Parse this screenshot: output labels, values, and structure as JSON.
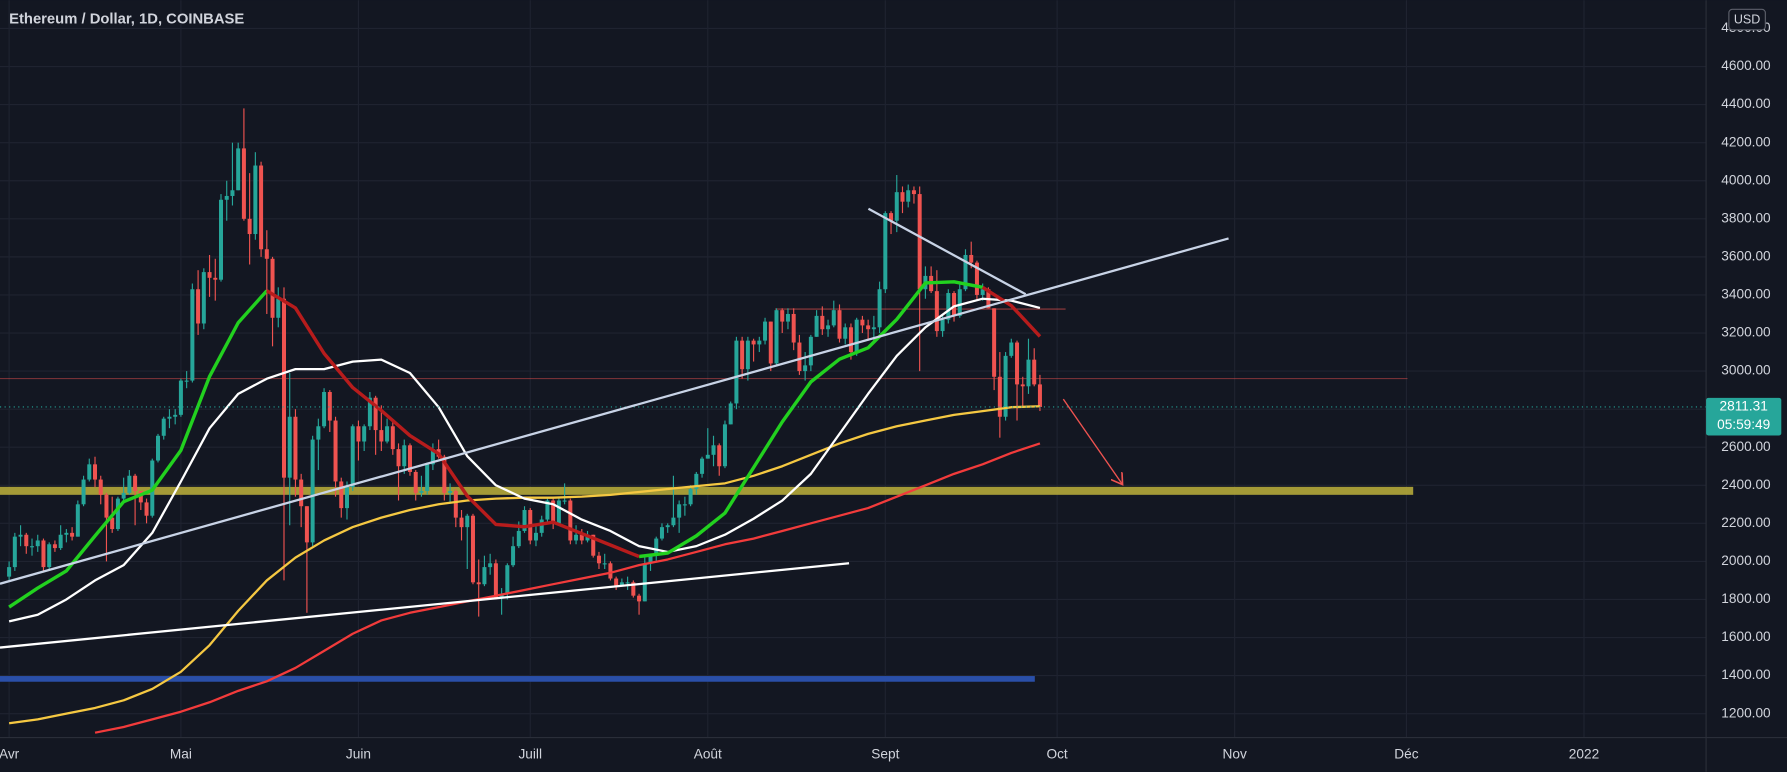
{
  "chart_data": {
    "type": "candlestick",
    "title": "Ethereum / Dollar, 1D, COINBASE",
    "currency": "USD",
    "last_price": 2811.31,
    "countdown": "05:59:49",
    "up_color": "#26a69a",
    "down_color": "#ef5350",
    "grid": true,
    "xlim": [
      -1.59,
      296.32
    ],
    "xticks": [
      {
        "value": 0,
        "label": "Avr"
      },
      {
        "value": 30,
        "label": "Mai"
      },
      {
        "value": 61,
        "label": "Juin"
      },
      {
        "value": 91,
        "label": "Juill"
      },
      {
        "value": 122,
        "label": "Août"
      },
      {
        "value": 153,
        "label": "Sept"
      },
      {
        "value": 183,
        "label": "Oct"
      },
      {
        "value": 214,
        "label": "Nov"
      },
      {
        "value": 244,
        "label": "Déc"
      },
      {
        "value": 275,
        "label": "2022"
      }
    ],
    "ylim": [
      1074.3,
      4948.5
    ],
    "yticks": [
      {
        "value": 1200,
        "label": "1200.00"
      },
      {
        "value": 1400,
        "label": "1400.00"
      },
      {
        "value": 1600,
        "label": "1600.00"
      },
      {
        "value": 1800,
        "label": "1800.00"
      },
      {
        "value": 2000,
        "label": "2000.00"
      },
      {
        "value": 2200,
        "label": "2200.00"
      },
      {
        "value": 2400,
        "label": "2400.00"
      },
      {
        "value": 2600,
        "label": "2600.00"
      },
      {
        "value": 2800,
        "label": "2800.00"
      },
      {
        "value": 3000,
        "label": "3000.00"
      },
      {
        "value": 3200,
        "label": "3200.00"
      },
      {
        "value": 3400,
        "label": "3400.00"
      },
      {
        "value": 3600,
        "label": "3600.00"
      },
      {
        "value": 3800,
        "label": "3800.00"
      },
      {
        "value": 4000,
        "label": "4000.00"
      },
      {
        "value": 4200,
        "label": "4200.00"
      },
      {
        "value": 4400,
        "label": "4400.00"
      },
      {
        "value": 4600,
        "label": "4600.00"
      },
      {
        "value": 4800,
        "label": "4800.00"
      }
    ],
    "x": [
      0,
      1,
      2,
      3,
      4,
      5,
      6,
      7,
      8,
      9,
      10,
      11,
      12,
      13,
      14,
      15,
      16,
      17,
      18,
      19,
      20,
      21,
      22,
      23,
      24,
      25,
      26,
      27,
      28,
      29,
      30,
      31,
      32,
      33,
      34,
      35,
      36,
      37,
      38,
      39,
      40,
      41,
      42,
      43,
      44,
      45,
      46,
      47,
      48,
      49,
      50,
      51,
      52,
      53,
      54,
      55,
      56,
      57,
      58,
      59,
      60,
      61,
      62,
      63,
      64,
      65,
      66,
      67,
      68,
      69,
      70,
      71,
      72,
      73,
      74,
      75,
      76,
      77,
      78,
      79,
      80,
      81,
      82,
      83,
      84,
      85,
      86,
      87,
      88,
      89,
      90,
      91,
      92,
      93,
      94,
      95,
      96,
      97,
      98,
      99,
      100,
      101,
      102,
      103,
      104,
      105,
      106,
      107,
      108,
      109,
      110,
      111,
      112,
      113,
      114,
      115,
      116,
      117,
      118,
      119,
      120,
      121,
      122,
      123,
      124,
      125,
      126,
      127,
      128,
      129,
      130,
      131,
      132,
      133,
      134,
      135,
      136,
      137,
      138,
      139,
      140,
      141,
      142,
      143,
      144,
      145,
      146,
      147,
      148,
      149,
      150,
      151,
      152,
      153,
      154,
      155,
      156,
      157,
      158,
      159,
      160,
      161,
      162,
      163,
      164,
      165,
      166,
      167,
      168,
      169,
      170,
      171,
      172,
      173,
      174,
      175,
      176,
      177,
      178,
      179,
      180
    ],
    "open": [
      1920,
      1970,
      2130,
      2140,
      2080,
      2080,
      2110,
      1970,
      2090,
      2070,
      2140,
      2150,
      2130,
      2300,
      2430,
      2510,
      2430,
      2350,
      2230,
      2170,
      2330,
      2360,
      2450,
      2370,
      2310,
      2240,
      2530,
      2660,
      2750,
      2760,
      2770,
      2950,
      2950,
      3430,
      3250,
      3520,
      3490,
      3480,
      3900,
      3920,
      3950,
      4170,
      3800,
      3720,
      4080,
      3640,
      3590,
      3280,
      3380,
      2440,
      2760,
      2430,
      2290,
      2100,
      2640,
      2710,
      2890,
      2740,
      2420,
      2280,
      2390,
      2710,
      2630,
      2710,
      2860,
      2690,
      2630,
      2710,
      2590,
      2500,
      2610,
      2470,
      2360,
      2370,
      2510,
      2590,
      2550,
      2360,
      2370,
      2230,
      2180,
      2240,
      1890,
      1880,
      1970,
      1990,
      1810,
      1830,
      1980,
      2080,
      2160,
      2270,
      2110,
      2150,
      2220,
      2320,
      2200,
      2320,
      2320,
      2110,
      2140,
      2110,
      2140,
      2030,
      1990,
      1990,
      1910,
      1870,
      1890,
      1890,
      1820,
      1790,
      1990,
      2030,
      2120,
      2180,
      2190,
      2230,
      2300,
      2300,
      2380,
      2460,
      2540,
      2560,
      2610,
      2500,
      2720,
      2830,
      3160,
      3010,
      3160,
      3140,
      3160,
      3260,
      3040,
      3320,
      3260,
      3300,
      3150,
      3000,
      3030,
      3180,
      3290,
      3220,
      3240,
      3320,
      3170,
      3230,
      3100,
      3270,
      3240,
      3220,
      3230,
      3430,
      3830,
      3790,
      3940,
      3890,
      3950,
      3930,
      3430,
      3500,
      3420,
      3210,
      3270,
      3410,
      3290,
      3430,
      3610,
      3570,
      3400,
      3430,
      3330,
      2970,
      2760,
      3080,
      3150,
      2930,
      2920,
      3060,
      2930
    ],
    "high": [
      2000,
      2150,
      2190,
      2150,
      2120,
      2140,
      2120,
      2100,
      2110,
      2190,
      2170,
      2180,
      2320,
      2450,
      2540,
      2550,
      2450,
      2360,
      2340,
      2340,
      2440,
      2480,
      2460,
      2370,
      2330,
      2540,
      2670,
      2760,
      2800,
      2800,
      2960,
      3000,
      3460,
      3530,
      3540,
      3610,
      3590,
      3930,
      4000,
      4200,
      4200,
      4380,
      4040,
      4150,
      4100,
      3740,
      3600,
      3440,
      3440,
      2990,
      2800,
      2460,
      2290,
      2660,
      2750,
      2910,
      2900,
      2760,
      2440,
      2420,
      2720,
      2740,
      2720,
      2890,
      2870,
      2820,
      2750,
      2740,
      2620,
      2640,
      2620,
      2480,
      2450,
      2520,
      2620,
      2640,
      2560,
      2410,
      2380,
      2270,
      2250,
      2250,
      2010,
      2030,
      2040,
      2010,
      1860,
      1990,
      2130,
      2210,
      2290,
      2280,
      2190,
      2240,
      2330,
      2330,
      2340,
      2410,
      2330,
      2190,
      2170,
      2160,
      2140,
      2050,
      2040,
      2000,
      1920,
      1910,
      1920,
      1900,
      1830,
      2030,
      2040,
      2130,
      2200,
      2200,
      2450,
      2320,
      2340,
      2400,
      2470,
      2550,
      2700,
      2660,
      2620,
      2740,
      2840,
      3180,
      3180,
      3180,
      3170,
      3180,
      3280,
      3260,
      3330,
      3330,
      3330,
      3330,
      3190,
      3100,
      3190,
      3320,
      3340,
      3270,
      3370,
      3350,
      3250,
      3250,
      3280,
      3290,
      3270,
      3290,
      3470,
      3840,
      3840,
      4030,
      3970,
      3980,
      3970,
      3970,
      3550,
      3550,
      3530,
      3300,
      3430,
      3420,
      3460,
      3640,
      3680,
      3580,
      3460,
      3440,
      3330,
      3100,
      3100,
      3170,
      3160,
      2970,
      3170,
      3120,
      2980
    ],
    "low": [
      1900,
      1950,
      2080,
      2040,
      2030,
      2050,
      1950,
      1960,
      2050,
      2060,
      2100,
      2110,
      2130,
      2290,
      2420,
      2390,
      2300,
      2000,
      2150,
      2160,
      2310,
      2350,
      2190,
      2270,
      2200,
      2230,
      2520,
      2640,
      2700,
      2720,
      2760,
      2910,
      2940,
      3190,
      3220,
      3390,
      3370,
      3470,
      3790,
      3870,
      3950,
      3790,
      3560,
      3690,
      3600,
      3300,
      3130,
      3230,
      1900,
      2190,
      2340,
      2180,
      1730,
      2080,
      2480,
      2700,
      2680,
      2340,
      2230,
      2220,
      2370,
      2530,
      2580,
      2690,
      2560,
      2580,
      2620,
      2560,
      2320,
      2460,
      2450,
      2320,
      2340,
      2350,
      2480,
      2540,
      2320,
      2310,
      2180,
      2110,
      1960,
      1880,
      1710,
      1870,
      1930,
      1800,
      1720,
      1800,
      1970,
      2070,
      2150,
      2090,
      2080,
      2130,
      2200,
      2170,
      2190,
      2300,
      2090,
      2090,
      2090,
      2100,
      2020,
      1960,
      1960,
      1900,
      1850,
      1870,
      1850,
      1810,
      1720,
      1790,
      1950,
      2000,
      2110,
      2150,
      2180,
      2150,
      2240,
      2290,
      2350,
      2440,
      2540,
      2500,
      2450,
      2490,
      2720,
      2800,
      2960,
      2950,
      3050,
      3100,
      3140,
      3000,
      3030,
      3200,
      3220,
      3110,
      2980,
      2950,
      3000,
      3180,
      3190,
      3180,
      3230,
      3150,
      3140,
      3060,
      3080,
      3200,
      3160,
      3160,
      3200,
      3410,
      3720,
      3730,
      3830,
      3860,
      3880,
      3000,
      3380,
      3410,
      3180,
      3180,
      3250,
      3260,
      3280,
      3420,
      3540,
      3370,
      3370,
      3330,
      2900,
      2650,
      2740,
      3070,
      2740,
      2810,
      2880,
      2920,
      2790
    ],
    "close": [
      1970,
      2130,
      2140,
      2080,
      2080,
      2110,
      1970,
      2090,
      2070,
      2140,
      2150,
      2130,
      2300,
      2430,
      2510,
      2430,
      2350,
      2230,
      2170,
      2330,
      2360,
      2450,
      2370,
      2310,
      2240,
      2530,
      2660,
      2750,
      2760,
      2770,
      2950,
      2950,
      3430,
      3250,
      3520,
      3490,
      3480,
      3900,
      3920,
      3950,
      4170,
      3800,
      3720,
      4080,
      3640,
      3590,
      3280,
      3380,
      2440,
      2760,
      2430,
      2290,
      2100,
      2640,
      2710,
      2890,
      2740,
      2420,
      2280,
      2390,
      2710,
      2630,
      2710,
      2860,
      2690,
      2630,
      2710,
      2590,
      2500,
      2610,
      2470,
      2360,
      2370,
      2510,
      2590,
      2550,
      2360,
      2370,
      2230,
      2180,
      2240,
      1890,
      1880,
      1970,
      1990,
      1810,
      1830,
      1980,
      2080,
      2160,
      2270,
      2110,
      2150,
      2220,
      2320,
      2200,
      2320,
      2320,
      2110,
      2140,
      2110,
      2140,
      2030,
      1990,
      1990,
      1910,
      1870,
      1890,
      1890,
      1820,
      1790,
      1990,
      2030,
      2120,
      2180,
      2190,
      2230,
      2300,
      2300,
      2380,
      2460,
      2540,
      2560,
      2610,
      2500,
      2720,
      2830,
      3160,
      3010,
      3160,
      3140,
      3160,
      3260,
      3040,
      3320,
      3260,
      3300,
      3150,
      3000,
      3030,
      3180,
      3290,
      3220,
      3240,
      3320,
      3170,
      3230,
      3100,
      3270,
      3240,
      3220,
      3230,
      3430,
      3830,
      3790,
      3940,
      3890,
      3950,
      3930,
      3430,
      3500,
      3420,
      3210,
      3270,
      3410,
      3290,
      3430,
      3610,
      3570,
      3400,
      3430,
      3330,
      2970,
      2760,
      3080,
      3150,
      2930,
      2920,
      3060,
      2930,
      2811.31
    ],
    "overlay_x": [
      0,
      5,
      10,
      15,
      20,
      25,
      30,
      35,
      40,
      45,
      50,
      55,
      60,
      65,
      70,
      75,
      80,
      85,
      90,
      95,
      100,
      105,
      110,
      115,
      120,
      125,
      130,
      135,
      140,
      145,
      150,
      155,
      160,
      165,
      170,
      175,
      180
    ],
    "overlays": [
      {
        "color": "#f5c842",
        "width": 2,
        "values": [
          1150,
          1170,
          1200,
          1230,
          1270,
          1330,
          1420,
          1560,
          1740,
          1900,
          2020,
          2110,
          2180,
          2230,
          2270,
          2300,
          2320,
          2330,
          2335,
          2335,
          2340,
          2350,
          2365,
          2380,
          2395,
          2410,
          2450,
          2500,
          2560,
          2620,
          2670,
          2710,
          2740,
          2770,
          2790,
          2810,
          2815
        ]
      },
      {
        "color": "#f23b3b",
        "width": 2,
        "values": [
          null,
          null,
          null,
          1100,
          1130,
          1170,
          1210,
          1260,
          1320,
          1370,
          1440,
          1530,
          1620,
          1690,
          1730,
          1760,
          1790,
          1820,
          1850,
          1880,
          1910,
          1940,
          1980,
          2010,
          2050,
          2090,
          2120,
          2160,
          2200,
          2240,
          2280,
          2340,
          2400,
          2460,
          2510,
          2570,
          2620
        ]
      },
      {
        "color": "#ffffff",
        "width": 2,
        "values": [
          1685,
          1720,
          1800,
          1900,
          1980,
          2150,
          2420,
          2700,
          2880,
          2960,
          3010,
          3010,
          3050,
          3060,
          2990,
          2810,
          2553,
          2400,
          2330,
          2300,
          2220,
          2160,
          2080,
          2050,
          2080,
          2140,
          2224,
          2320,
          2460,
          2670,
          2880,
          3080,
          3230,
          3340,
          3380,
          3370,
          3332
        ]
      },
      {
        "color": "#22d11f",
        "width": 3,
        "values": [
          1760,
          1860,
          1950,
          2134,
          2314,
          2374,
          2583,
          2972,
          3254,
          3422,
          null,
          null,
          null,
          null,
          null,
          null,
          null,
          null,
          null,
          null,
          null,
          null,
          2026,
          2044,
          2134,
          2254,
          2493,
          2733,
          2943,
          3062,
          3122,
          3272,
          3463,
          3469,
          3440,
          null,
          null
        ]
      },
      {
        "color": "#b71c1c",
        "width": 3,
        "values": [
          null,
          null,
          null,
          null,
          null,
          null,
          null,
          null,
          null,
          3422,
          3332,
          3092,
          2913,
          2793,
          2661,
          2565,
          2344,
          2194,
          2182,
          2206,
          2146,
          2086,
          2026,
          null,
          null,
          null,
          null,
          null,
          null,
          null,
          null,
          null,
          null,
          null,
          3440,
          3344,
          3182
        ]
      }
    ]
  }
}
